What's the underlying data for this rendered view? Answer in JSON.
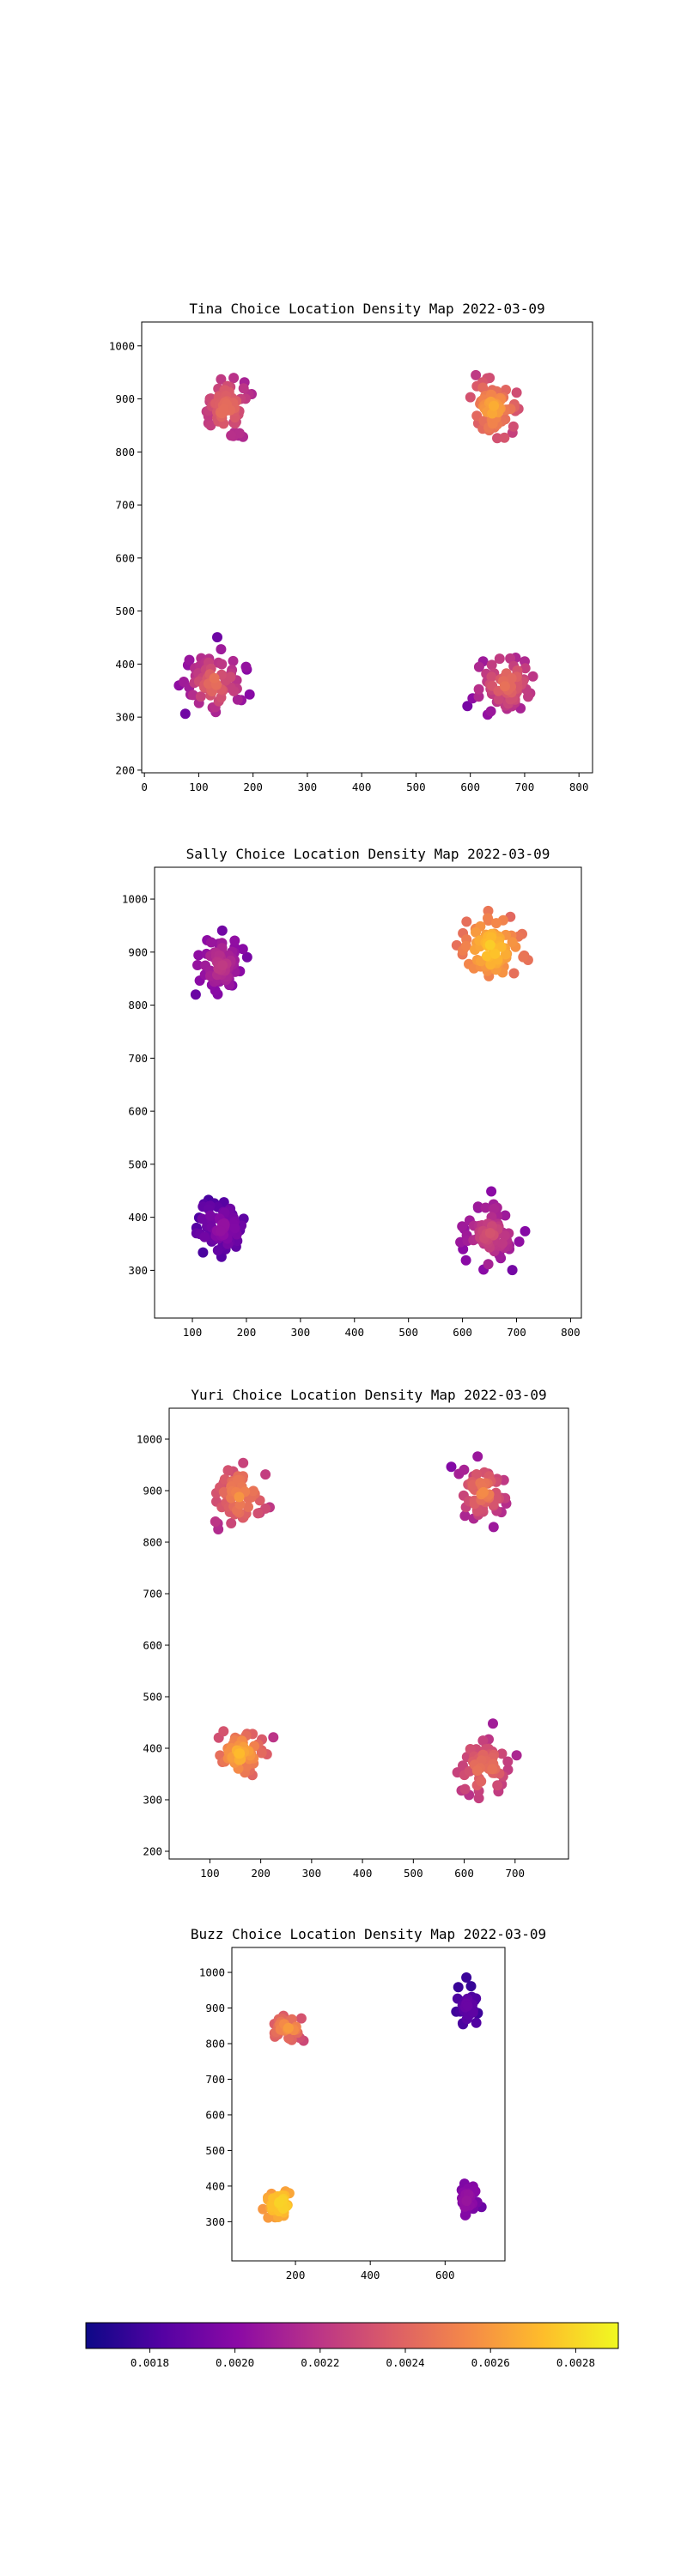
{
  "chart_data": [
    {
      "type": "scatter",
      "title": "Tina Choice Location Density Map 2022-03-09",
      "xlim": [
        -5,
        825
      ],
      "ylim": [
        195,
        1045
      ],
      "xticks": [
        0,
        100,
        200,
        300,
        400,
        500,
        600,
        700,
        800
      ],
      "yticks": [
        200,
        300,
        400,
        500,
        600,
        700,
        800,
        900,
        1000
      ],
      "clusters": [
        {
          "x_range": [
            55,
            245
          ],
          "y_range": [
            770,
            1000
          ],
          "c_range": [
            0.00185,
            0.0026
          ]
        },
        {
          "x_range": [
            545,
            740
          ],
          "y_range": [
            765,
            1000
          ],
          "c_range": [
            0.00195,
            0.0028
          ]
        },
        {
          "x_range": [
            20,
            240
          ],
          "y_range": [
            240,
            490
          ],
          "c_range": [
            0.0017,
            0.0026
          ]
        },
        {
          "x_range": [
            540,
            795
          ],
          "y_range": [
            235,
            495
          ],
          "c_range": [
            0.0017,
            0.0026
          ]
        }
      ]
    },
    {
      "type": "scatter",
      "title": "Sally Choice Location Density Map 2022-03-09",
      "xlim": [
        30,
        820
      ],
      "ylim": [
        210,
        1060
      ],
      "xticks": [
        100,
        200,
        300,
        400,
        500,
        600,
        700,
        800
      ],
      "yticks": [
        300,
        400,
        500,
        600,
        700,
        800,
        900,
        1000
      ],
      "clusters": [
        {
          "x_range": [
            55,
            245
          ],
          "y_range": [
            765,
            990
          ],
          "c_range": [
            0.00175,
            0.0023
          ]
        },
        {
          "x_range": [
            540,
            765
          ],
          "y_range": [
            780,
            1030
          ],
          "c_range": [
            0.0022,
            0.00288
          ]
        },
        {
          "x_range": [
            55,
            255
          ],
          "y_range": [
            280,
            485
          ],
          "c_range": [
            0.00165,
            0.0021
          ]
        },
        {
          "x_range": [
            545,
            755
          ],
          "y_range": [
            245,
            490
          ],
          "c_range": [
            0.0018,
            0.0024
          ]
        }
      ]
    },
    {
      "type": "scatter",
      "title": "Yuri Choice Location Density Map 2022-03-09",
      "xlim": [
        20,
        805
      ],
      "ylim": [
        185,
        1060
      ],
      "xticks": [
        100,
        200,
        300,
        400,
        500,
        600,
        700
      ],
      "yticks": [
        200,
        300,
        400,
        500,
        600,
        700,
        800,
        900,
        1000
      ],
      "clusters": [
        {
          "x_range": [
            55,
            265
          ],
          "y_range": [
            770,
            1015
          ],
          "c_range": [
            0.00195,
            0.0027
          ]
        },
        {
          "x_range": [
            525,
            750
          ],
          "y_range": [
            770,
            1025
          ],
          "c_range": [
            0.0017,
            0.0027
          ]
        },
        {
          "x_range": [
            55,
            265
          ],
          "y_range": [
            280,
            495
          ],
          "c_range": [
            0.00195,
            0.00285
          ]
        },
        {
          "x_range": [
            520,
            760
          ],
          "y_range": [
            230,
            490
          ],
          "c_range": [
            0.0019,
            0.0026
          ]
        }
      ]
    },
    {
      "type": "scatter",
      "title": "Buzz Choice Location Density Map 2022-03-09",
      "xlim": [
        30,
        760
      ],
      "ylim": [
        190,
        1070
      ],
      "xticks": [
        200,
        400,
        600
      ],
      "yticks": [
        300,
        400,
        500,
        600,
        700,
        800,
        900,
        1000
      ],
      "clusters": [
        {
          "x_range": [
            90,
            270
          ],
          "y_range": [
            770,
            920
          ],
          "c_range": [
            0.0021,
            0.0027
          ]
        },
        {
          "x_range": [
            590,
            730
          ],
          "y_range": [
            780,
            1030
          ],
          "c_range": [
            0.0017,
            0.0019
          ]
        },
        {
          "x_range": [
            70,
            250
          ],
          "y_range": [
            260,
            440
          ],
          "c_range": [
            0.0024,
            0.00288
          ]
        },
        {
          "x_range": [
            600,
            720
          ],
          "y_range": [
            270,
            455
          ],
          "c_range": [
            0.0019,
            0.00205
          ]
        }
      ]
    }
  ],
  "colorbar": {
    "colormap": "plasma",
    "vmin": 0.00165,
    "vmax": 0.0029,
    "ticks": [
      "0.0018",
      "0.0020",
      "0.0022",
      "0.0024",
      "0.0026",
      "0.0028"
    ]
  }
}
